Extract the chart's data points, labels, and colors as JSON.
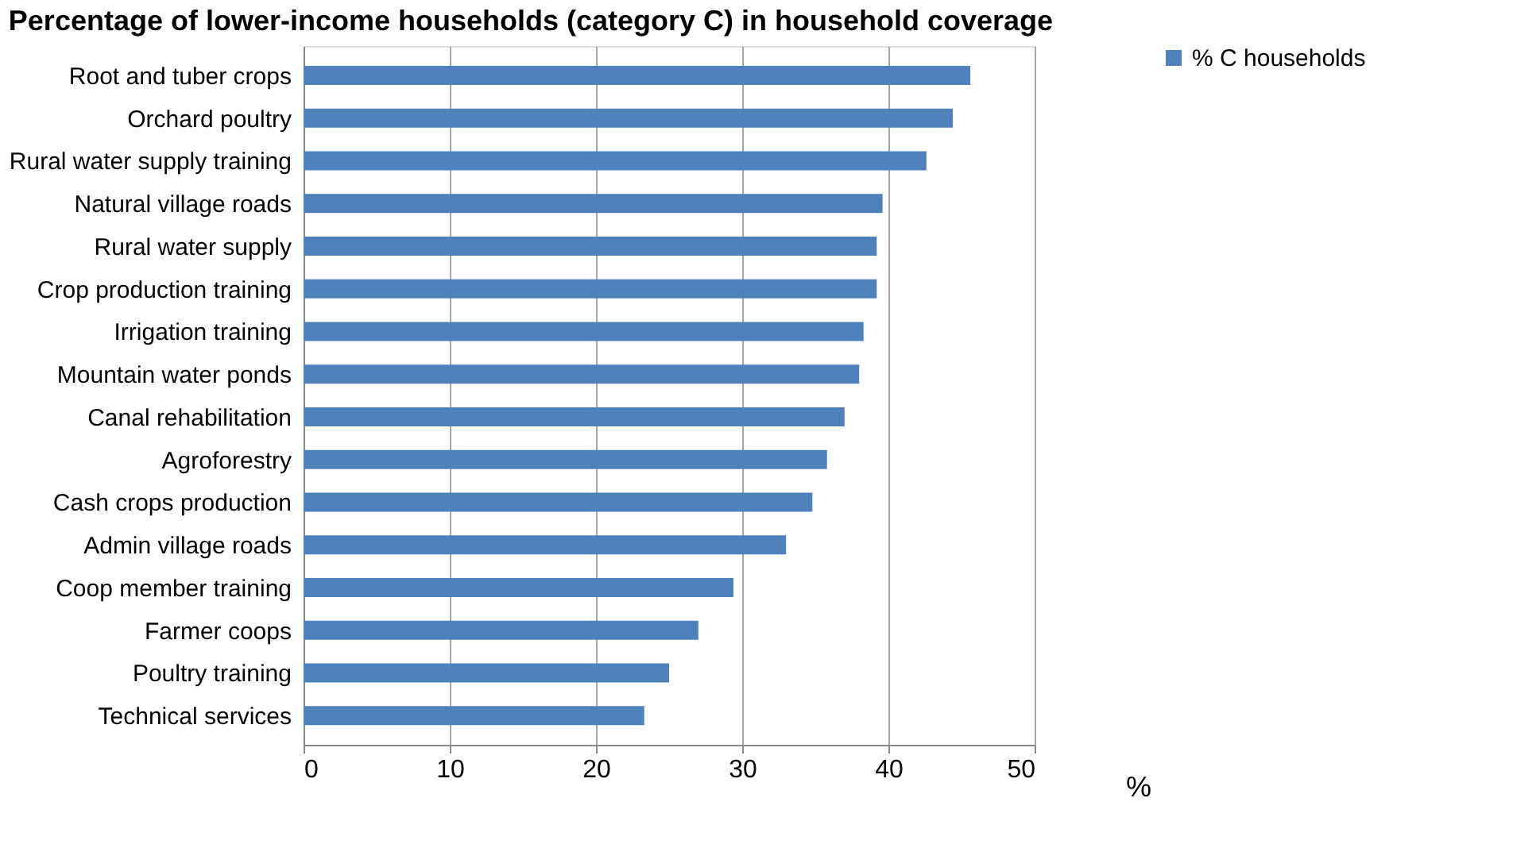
{
  "chart_data": {
    "type": "bar",
    "orientation": "horizontal",
    "title": "Percentage of lower-income households (category C) in household coverage",
    "categories": [
      "Root and tuber crops",
      "Orchard poultry",
      "Rural water supply training",
      "Natural village roads",
      "Rural water supply",
      "Crop production training",
      "Irrigation training",
      "Mountain water ponds",
      "Canal rehabilitation",
      "Agroforestry",
      "Cash crops production",
      "Admin village roads",
      "Coop member training",
      "Farmer coops",
      "Poultry training",
      "Technical services"
    ],
    "series": [
      {
        "name": "% C households",
        "color": "#4f81bd",
        "values": [
          45.6,
          44.4,
          42.6,
          39.6,
          39.2,
          39.2,
          38.3,
          38.0,
          37.0,
          35.8,
          34.8,
          33.0,
          29.4,
          27.0,
          25.0,
          23.3
        ]
      }
    ],
    "xlabel": "%",
    "xlim": [
      0,
      50
    ],
    "xticks": [
      0,
      10,
      20,
      30,
      40,
      50
    ],
    "grid": "x",
    "legend": "right"
  }
}
